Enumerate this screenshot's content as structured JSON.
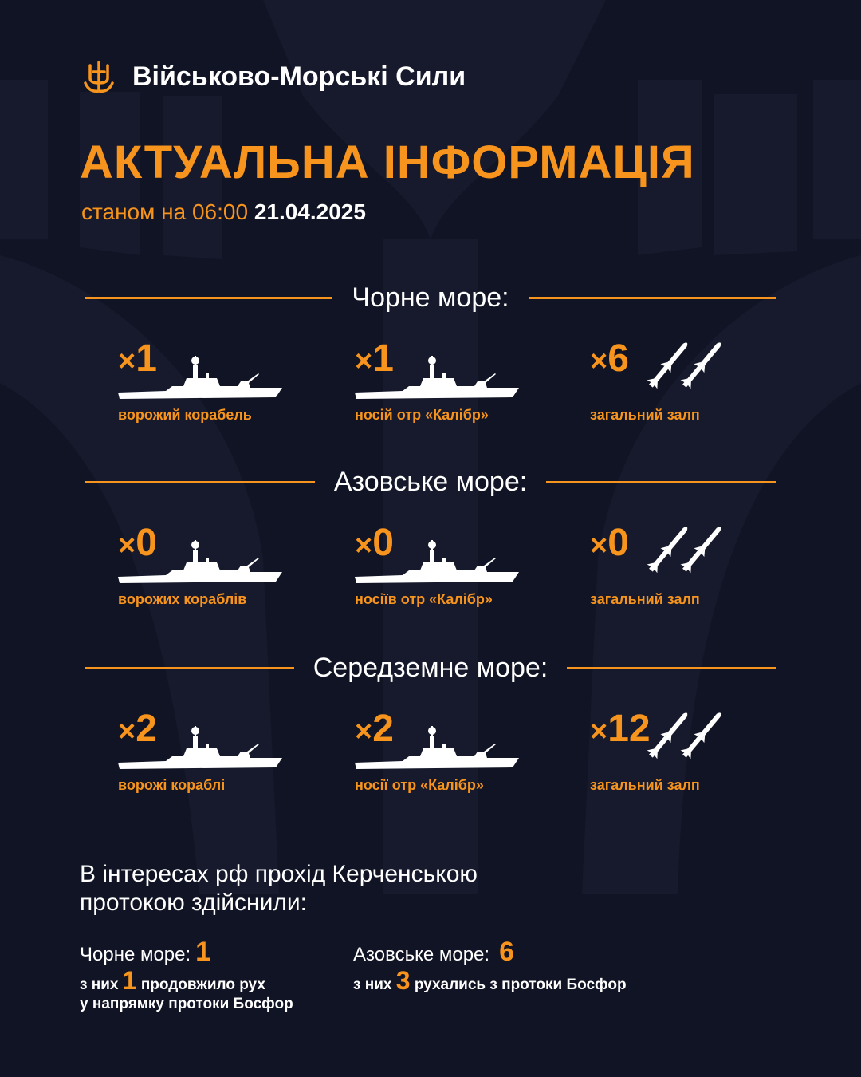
{
  "header": {
    "org_name": "Військово-Морські Сили",
    "logo_icon": "trident-anchor-icon"
  },
  "title": "АКТУАЛЬНА ІНФОРМАЦІЯ",
  "subtitle": {
    "prefix": "станом на 06:00",
    "date": "21.04.2025"
  },
  "colors": {
    "accent": "#f7941d",
    "background": "#111424",
    "text": "#ffffff"
  },
  "sections": [
    {
      "name": "Чорне море:",
      "items": [
        {
          "count": "1",
          "label": "ворожий корабель",
          "icon": "ship-icon"
        },
        {
          "count": "1",
          "label": "носій отр «Калібр»",
          "icon": "ship-icon"
        },
        {
          "count": "6",
          "label": "загальний залп",
          "icon": "missiles-icon"
        }
      ]
    },
    {
      "name": "Азовське море:",
      "items": [
        {
          "count": "0",
          "label": "ворожих кораблів",
          "icon": "ship-icon"
        },
        {
          "count": "0",
          "label": "носіїв отр «Калібр»",
          "icon": "ship-icon"
        },
        {
          "count": "0",
          "label": "загальний залп",
          "icon": "missiles-icon"
        }
      ]
    },
    {
      "name": "Середземне море:",
      "items": [
        {
          "count": "2",
          "label": "ворожі кораблі",
          "icon": "ship-icon"
        },
        {
          "count": "2",
          "label": "носії отр «Калібр»",
          "icon": "ship-icon"
        },
        {
          "count": "12",
          "label": "загальний залп",
          "icon": "missiles-icon"
        }
      ]
    }
  ],
  "count_prefix": "×",
  "kerch": {
    "line1": "В інтересах рф прохід Керченською",
    "line2": "протокою здійснили:",
    "black_sea": {
      "label": "Чорне море:",
      "value": "1",
      "detail_prefix": "з них",
      "detail_value": "1",
      "detail_suffix": "продовжило рух",
      "detail_line2": "у напрямку протоки Босфор"
    },
    "azov_sea": {
      "label": "Азовське море:",
      "value": "6",
      "detail_prefix": "з них",
      "detail_value": "3",
      "detail_suffix": "рухались з протоки Босфор"
    }
  }
}
